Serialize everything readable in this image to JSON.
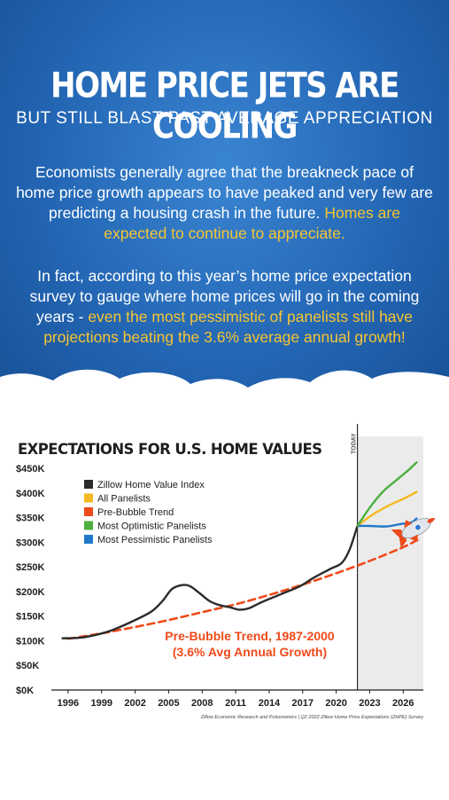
{
  "header": {
    "title": "HOME PRICE JETS ARE COOLING",
    "subtitle": "BUT STILL BLAST PAST AVERAGE APPRECIATION",
    "para1_a": "Economists generally agree that the breakneck pace of home price growth appears to have peaked and very few are predicting a housing crash in the future.",
    "para1_b": "Homes are expected to continue to appreciate.",
    "para2_a": "In fact, according to this year’s home price expectation survey to gauge where home prices will go in the coming years -",
    "para2_b": "even the most pessimistic of panelists still have projections beating the 3.6% average annual growth!"
  },
  "colors": {
    "zhvi": "#2b2b2b",
    "all": "#f5b820",
    "trend": "#ef4a1a",
    "optimistic": "#4caf3f",
    "pessimistic": "#1f78c8",
    "highlight": "#f7c531"
  },
  "chart_data": {
    "type": "line",
    "title": "EXPECTATIONS FOR U.S. HOME VALUES",
    "xlim": [
      1994.5,
      2027.8
    ],
    "ylim": [
      0,
      450000
    ],
    "x_ticks": [
      1996,
      1999,
      2002,
      2005,
      2008,
      2011,
      2014,
      2017,
      2020,
      2023,
      2026
    ],
    "x_tick_labels": [
      "1996",
      "1999",
      "2002",
      "2005",
      "2008",
      "2011",
      "2014",
      "2017",
      "2020",
      "2023",
      "2026"
    ],
    "y_ticks": [
      0,
      50000,
      100000,
      150000,
      200000,
      250000,
      300000,
      350000,
      400000,
      450000
    ],
    "y_tick_labels": [
      "$0K",
      "$50K",
      "$100K",
      "$150K",
      "$200K",
      "$250K",
      "$300K",
      "$350K",
      "$400K",
      "$450K"
    ],
    "today_label": "TODAY",
    "today_x": 2021.9,
    "forecast_shading_start": 2021.9,
    "legend_placement": "top-left",
    "legend": [
      "Zillow Home Value Index",
      "All Panelists",
      "Pre-Bubble Trend",
      "Most Optimistic Panelists",
      "Most Pessimistic Panelists"
    ],
    "series": [
      {
        "name": "Zillow Home Value Index",
        "style": "solid",
        "colorKey": "zhvi",
        "x": [
          1995.5,
          1997,
          1998.5,
          2000,
          2002,
          2003.5,
          2004.5,
          2005.3,
          2006.2,
          2006.9,
          2007.8,
          2008.7,
          2009.6,
          2010.5,
          2011.3,
          2012.2,
          2013.3,
          2015,
          2016.7,
          2018,
          2019.5,
          2020.5,
          2021.2,
          2021.9
        ],
        "y": [
          105000,
          106000,
          112000,
          122000,
          142000,
          160000,
          182000,
          205000,
          213000,
          211000,
          196000,
          180000,
          172000,
          168000,
          163000,
          166000,
          178000,
          194000,
          210000,
          228000,
          246000,
          258000,
          285000,
          333000
        ]
      },
      {
        "name": "All Panelists",
        "style": "solid",
        "colorKey": "all",
        "x": [
          2021.9,
          2023,
          2024.5,
          2026,
          2027.2
        ],
        "y": [
          333000,
          352000,
          372000,
          388000,
          402000
        ]
      },
      {
        "name": "Pre-Bubble Trend",
        "style": "dashed",
        "colorKey": "trend",
        "x": [
          1996,
          1999,
          2002,
          2005,
          2008,
          2011,
          2014,
          2017,
          2020,
          2023,
          2026,
          2027.3
        ],
        "y": [
          104000,
          115000,
          128000,
          142000,
          158000,
          174000,
          193000,
          214000,
          237000,
          262000,
          290000,
          305000
        ]
      },
      {
        "name": "Most Optimistic Panelists",
        "style": "solid",
        "colorKey": "optimistic",
        "x": [
          2021.9,
          2023,
          2024.2,
          2025.5,
          2026.5,
          2027.2
        ],
        "y": [
          333000,
          370000,
          403000,
          428000,
          447000,
          462000
        ]
      },
      {
        "name": "Most Pessimistic Panelists",
        "style": "solid",
        "colorKey": "pessimistic",
        "x": [
          2021.9,
          2023,
          2024.5,
          2025.8,
          2026.7,
          2027.2
        ],
        "y": [
          333000,
          333000,
          332000,
          337000,
          340000,
          348000
        ]
      }
    ],
    "annotation_line1": "Pre-Bubble Trend, 1987-2000",
    "annotation_line2": "(3.6% Avg Annual Growth)",
    "source": "Zillow Economic Research and Pulsenomics | Q2 2022 Zillow Home Price Expectations (ZHPE) Survey"
  }
}
